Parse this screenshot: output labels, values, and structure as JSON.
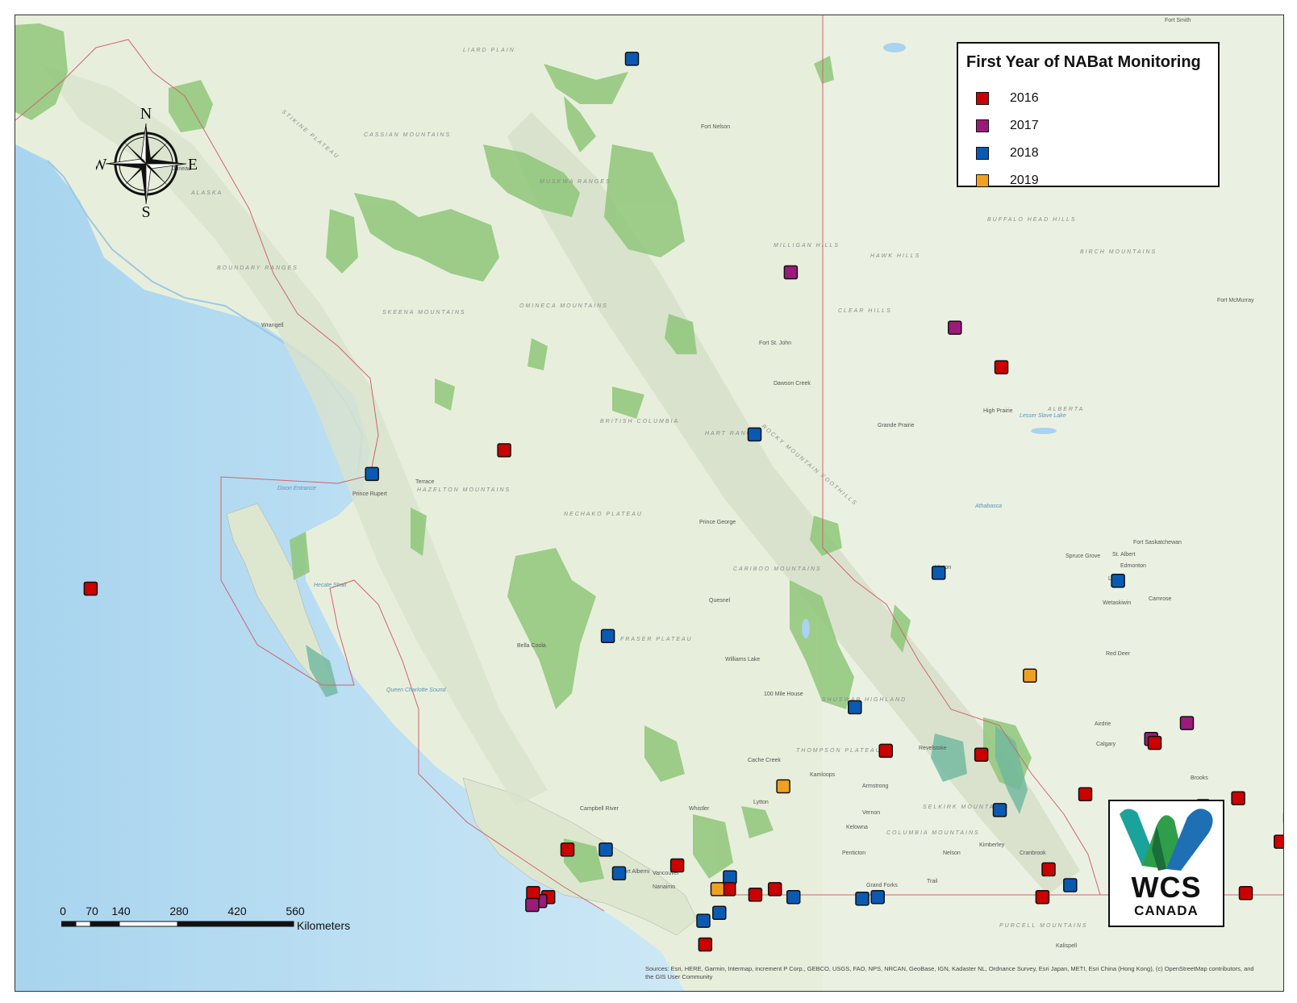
{
  "legend": {
    "title": "First Year of NABat Monitoring",
    "items": [
      {
        "label": "2016",
        "color": "#cc0000"
      },
      {
        "label": "2017",
        "color": "#9b1b7c"
      },
      {
        "label": "2018",
        "color": "#0a5ab4"
      },
      {
        "label": "2019",
        "color": "#f0a020"
      }
    ]
  },
  "compass": {
    "n": "N",
    "s": "S",
    "e": "E",
    "w": "W"
  },
  "scale": {
    "ticks": [
      "0",
      "70",
      "140",
      "280",
      "420",
      "560"
    ],
    "unit": "Kilometers"
  },
  "logo": {
    "line1": "WCS",
    "line2": "CANADA"
  },
  "sources": "Sources: Esri, HERE, Garmin, Intermap, increment P Corp., GEBCO, USGS, FAO, NPS, NRCAN, GeoBase, IGN, Kadaster NL, Ordnance Survey, Esri Japan, METI, Esri China (Hong Kong), (c) OpenStreetMap contributors, and the GIS User Community",
  "places": [
    "Fort Smith",
    "Fort Nelson",
    "Fort St. John",
    "Dawson Creek",
    "Grande Prairie",
    "High Prairie",
    "Fort McMurray",
    "Prince George",
    "Prince Rupert",
    "Terrace",
    "Quesnel",
    "Williams Lake",
    "100 Mile House",
    "Kamloops",
    "Cache Creek",
    "Vernon",
    "Kelowna",
    "Penticton",
    "Nelson",
    "Trail",
    "Cranbrook",
    "Kimberley",
    "Revelstoke",
    "Calgary",
    "Red Deer",
    "Edmonton",
    "St. Albert",
    "Hinton",
    "Leduc",
    "Camrose",
    "Wetaskiwin",
    "Airdrie",
    "Brooks",
    "Vancouver",
    "Nanaimo",
    "Campbell River",
    "Port Alberni",
    "Bella Coola",
    "Wrangell",
    "Juneau",
    "Whistler",
    "Lytton",
    "Armstrong",
    "Spruce Grove",
    "Fort Saskatchewan",
    "Grand Forks",
    "Kalispell"
  ],
  "regions": [
    "LIARD PLAIN",
    "CASSIAN MOUNTAINS",
    "STIKINE PLATEAU",
    "BOUNDARY RANGES",
    "SKEENA MOUNTAINS",
    "OMINECA MOUNTAINS",
    "NECHAKO PLATEAU",
    "FRASER PLATEAU",
    "CARIBOO MOUNTAINS",
    "HART RANGES",
    "ROCKY MOUNTAIN FOOTHILLS",
    "HAZELTON MOUNTAINS",
    "THOMPSON PLATEAU",
    "COLUMBIA MOUNTAINS",
    "SELKIRK MOUNTAINS",
    "PURCELL MOUNTAINS",
    "MILLIGAN HILLS",
    "HAWK HILLS",
    "CLEAR HILLS",
    "BIRCH MOUNTAINS",
    "BUFFALO HEAD HILLS",
    "MUSKWA RANGES",
    "SHUSWAP HIGHLAND",
    "BRITISH COLUMBIA",
    "ALBERTA",
    "ALASKA"
  ],
  "water": [
    "Dixon Entrance",
    "Hecate Strait",
    "Queen Charlotte Sound",
    "Lesser Slave Lake",
    "Athabasca"
  ],
  "sites": [
    {
      "year": "2018",
      "lon": -125.35,
      "lat": 59.65
    },
    {
      "year": "2017",
      "lon": -123.05,
      "lat": 56.95
    },
    {
      "year": "2017",
      "lon": -120.85,
      "lat": 56.25
    },
    {
      "year": "2016",
      "lon": -120.2,
      "lat": 55.75
    },
    {
      "year": "2016",
      "lon": -126.6,
      "lat": 54.7
    },
    {
      "year": "2018",
      "lon": -128.3,
      "lat": 54.4
    },
    {
      "year": "2018",
      "lon": -123.35,
      "lat": 54.9
    },
    {
      "year": "2016",
      "lon": -131.85,
      "lat": 52.95
    },
    {
      "year": "2018",
      "lon": -120.8,
      "lat": 53.15
    },
    {
      "year": "2018",
      "lon": -118.45,
      "lat": 53.05
    },
    {
      "year": "2018",
      "lon": -125.05,
      "lat": 52.35
    },
    {
      "year": "2019",
      "lon": -119.5,
      "lat": 51.85
    },
    {
      "year": "2018",
      "lon": -121.75,
      "lat": 51.45
    },
    {
      "year": "2017",
      "lon": -117.4,
      "lat": 51.25
    },
    {
      "year": "2017",
      "lon": -117.85,
      "lat": 51.05
    },
    {
      "year": "2016",
      "lon": -117.8,
      "lat": 51.0
    },
    {
      "year": "2016",
      "lon": -121.3,
      "lat": 50.9
    },
    {
      "year": "2016",
      "lon": -120.05,
      "lat": 50.85
    },
    {
      "year": "2019",
      "lon": -122.6,
      "lat": 50.45
    },
    {
      "year": "2016",
      "lon": -118.65,
      "lat": 50.35
    },
    {
      "year": "2018",
      "lon": -119.75,
      "lat": 50.15
    },
    {
      "year": "2016",
      "lon": -117.1,
      "lat": 50.2
    },
    {
      "year": "2016",
      "lon": -116.65,
      "lat": 50.3
    },
    {
      "year": "2018",
      "lon": -115.95,
      "lat": 50.05
    },
    {
      "year": "2019",
      "lon": -115.35,
      "lat": 50.2
    },
    {
      "year": "2016",
      "lon": -116.05,
      "lat": 49.75
    },
    {
      "year": "2018",
      "lon": -115.5,
      "lat": 49.5
    },
    {
      "year": "2016",
      "lon": -115.45,
      "lat": 49.2
    },
    {
      "year": "2016",
      "lon": -117.05,
      "lat": 49.35
    },
    {
      "year": "2016",
      "lon": -119.05,
      "lat": 49.4
    },
    {
      "year": "2016",
      "lon": -119.1,
      "lat": 49.05
    },
    {
      "year": "2018",
      "lon": -118.75,
      "lat": 49.2
    },
    {
      "year": "2016",
      "lon": -116.45,
      "lat": 49.1
    },
    {
      "year": "2016",
      "lon": -125.35,
      "lat": 49.65
    },
    {
      "year": "2018",
      "lon": -124.85,
      "lat": 49.65
    },
    {
      "year": "2018",
      "lon": -124.65,
      "lat": 49.35
    },
    {
      "year": "2016",
      "lon": -123.9,
      "lat": 49.45
    },
    {
      "year": "2018",
      "lon": -123.2,
      "lat": 49.3
    },
    {
      "year": "2016",
      "lon": -123.2,
      "lat": 49.15
    },
    {
      "year": "2019",
      "lon": -123.35,
      "lat": 49.15
    },
    {
      "year": "2016",
      "lon": -122.6,
      "lat": 49.15
    },
    {
      "year": "2016",
      "lon": -122.85,
      "lat": 49.08
    },
    {
      "year": "2018",
      "lon": -122.35,
      "lat": 49.05
    },
    {
      "year": "2018",
      "lon": -121.45,
      "lat": 49.03
    },
    {
      "year": "2018",
      "lon": -121.25,
      "lat": 49.05
    },
    {
      "year": "2018",
      "lon": -123.5,
      "lat": 48.75
    },
    {
      "year": "2018",
      "lon": -123.3,
      "lat": 48.85
    },
    {
      "year": "2016",
      "lon": -123.45,
      "lat": 48.45
    },
    {
      "year": "2016",
      "lon": -125.55,
      "lat": 49.05
    },
    {
      "year": "2017",
      "lon": -125.65,
      "lat": 49.0
    },
    {
      "year": "2016",
      "lon": -125.75,
      "lat": 49.1
    },
    {
      "year": "2017",
      "lon": -125.75,
      "lat": 48.95
    }
  ]
}
